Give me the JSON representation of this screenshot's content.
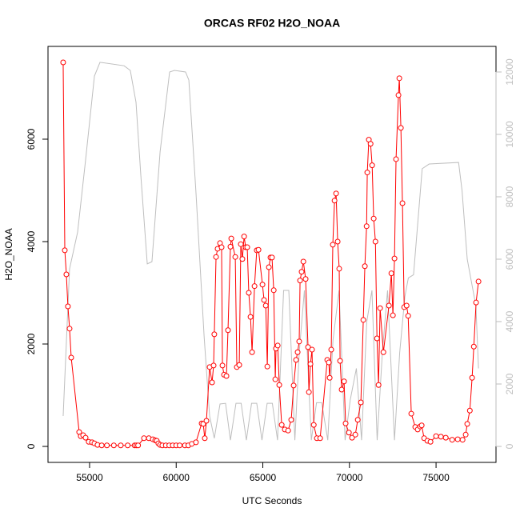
{
  "chart_data": {
    "type": "line",
    "title": "ORCAS RF02 H2O_NOAA",
    "x_label": "UTC Seconds",
    "y_label": "H2O_NOAA",
    "xlim": [
      52600,
      78460
    ],
    "ylim": [
      -312,
      7812
    ],
    "y2lim": [
      -513,
      12820
    ],
    "xticks": [
      55000,
      60000,
      65000,
      70000,
      75000
    ],
    "yticks": [
      0,
      2000,
      4000,
      6000
    ],
    "y2ticks": [
      0,
      2000,
      4000,
      6000,
      8000,
      10000,
      12000
    ],
    "y2_color": "#bebebe",
    "grid": false,
    "series": [
      {
        "color": "#bebebe",
        "axis": "y2",
        "x": [
          53475,
          53845,
          54310,
          54770,
          55280,
          55600,
          56990,
          57350,
          57680,
          57960,
          58330,
          58600,
          59070,
          59620,
          59900,
          60540,
          60730,
          61140,
          61610,
          61930,
          62200,
          62530,
          62850,
          63130,
          63450,
          63750,
          64050,
          64350,
          64650,
          64950,
          65250,
          65550,
          65850,
          66200,
          66500,
          66850,
          67100,
          67400,
          67800,
          68100,
          68400,
          68750,
          69050,
          69400,
          69750,
          70050,
          70400,
          70700,
          71000,
          71300,
          71600,
          71900,
          72200,
          72600,
          72900,
          73200,
          73400,
          73700,
          74200,
          74600,
          76300,
          76500,
          76800,
          77300,
          77450
        ],
        "values": [
          975,
          5690,
          6870,
          9180,
          11870,
          12310,
          12200,
          12050,
          11030,
          8670,
          5850,
          5920,
          9440,
          12000,
          12050,
          12000,
          11740,
          8150,
          3540,
          970,
          260,
          1360,
          1380,
          200,
          1380,
          1380,
          200,
          1380,
          1380,
          200,
          1380,
          1380,
          200,
          5000,
          5000,
          200,
          3000,
          5000,
          200,
          1400,
          1400,
          200,
          3400,
          5000,
          200,
          1500,
          2500,
          200,
          4000,
          5000,
          200,
          3000,
          5000,
          200,
          3000,
          4800,
          5400,
          5500,
          8900,
          9050,
          9100,
          8200,
          6000,
          4500,
          2500
        ]
      },
      {
        "color": "#ff0000",
        "marker": "circle",
        "x": [
          53475,
          53570,
          53660,
          53750,
          53845,
          53940,
          54400,
          54490,
          54630,
          54770,
          54950,
          55140,
          55280,
          55460,
          55700,
          56000,
          56400,
          56800,
          57200,
          57600,
          57700,
          57800,
          58140,
          58420,
          58650,
          58790,
          58880,
          58970,
          59070,
          59200,
          59400,
          59600,
          59800,
          60000,
          60200,
          60500,
          60700,
          60900,
          61140,
          61470,
          61560,
          61650,
          61745,
          61930,
          62070,
          62160,
          62200,
          62300,
          62390,
          62530,
          62620,
          62670,
          62760,
          62900,
          62990,
          63130,
          63180,
          63410,
          63500,
          63640,
          63730,
          63820,
          63920,
          64010,
          64100,
          64190,
          64290,
          64380,
          64520,
          64650,
          64750,
          64980,
          65070,
          65170,
          65260,
          65350,
          65440,
          65530,
          65630,
          65720,
          65760,
          65860,
          65950,
          66090,
          66270,
          66460,
          66640,
          66780,
          66920,
          67010,
          67100,
          67150,
          67240,
          67340,
          67470,
          67610,
          67660,
          67750,
          67840,
          67940,
          68120,
          68310,
          68720,
          68810,
          68860,
          68950,
          69040,
          69140,
          69230,
          69320,
          69410,
          69460,
          69550,
          69690,
          69780,
          69970,
          70150,
          70340,
          70480,
          70660,
          70800,
          70890,
          70990,
          71030,
          71120,
          71220,
          71310,
          71400,
          71500,
          71590,
          71680,
          71770,
          71960,
          72280,
          72420,
          72510,
          72600,
          72690,
          72830,
          72880,
          72970,
          73060,
          73160,
          73300,
          73390,
          73570,
          73800,
          73940,
          74080,
          74170,
          74310,
          74500,
          74680,
          75000,
          75280,
          75560,
          75930,
          76250,
          76530,
          76710,
          76800,
          76950,
          77080,
          77180,
          77310,
          77450
        ],
        "values": [
          7500,
          3830,
          3360,
          2735,
          2300,
          1735,
          280,
          200,
          220,
          170,
          90,
          80,
          60,
          30,
          20,
          20,
          20,
          20,
          20,
          20,
          20,
          20,
          160,
          160,
          140,
          120,
          110,
          60,
          30,
          20,
          20,
          20,
          20,
          20,
          20,
          20,
          20,
          50,
          80,
          450,
          440,
          160,
          500,
          1550,
          1250,
          1580,
          2190,
          3700,
          3860,
          3970,
          3890,
          1580,
          1400,
          1375,
          2270,
          3900,
          4060,
          3700,
          1550,
          1590,
          3950,
          3660,
          4100,
          3890,
          3890,
          3000,
          2530,
          1840,
          3130,
          3830,
          3840,
          3160,
          2860,
          2750,
          1560,
          3500,
          3690,
          3690,
          3050,
          1310,
          1910,
          1970,
          1200,
          420,
          330,
          310,
          520,
          1190,
          1690,
          1840,
          2050,
          3240,
          3410,
          3610,
          3270,
          1940,
          1060,
          1610,
          1890,
          420,
          160,
          160,
          1690,
          1640,
          1340,
          1890,
          3940,
          4800,
          4940,
          4000,
          3470,
          1670,
          1110,
          1270,
          450,
          270,
          170,
          230,
          520,
          860,
          2470,
          3520,
          4300,
          5350,
          5990,
          5910,
          5490,
          4450,
          4000,
          2110,
          1200,
          2700,
          1840,
          2750,
          3380,
          2560,
          3670,
          5610,
          6860,
          7190,
          6220,
          4750,
          2720,
          2750,
          2550,
          640,
          380,
          330,
          390,
          410,
          160,
          110,
          90,
          200,
          190,
          170,
          130,
          140,
          130,
          230,
          440,
          700,
          1340,
          1950,
          2810,
          3220
        ]
      }
    ]
  }
}
